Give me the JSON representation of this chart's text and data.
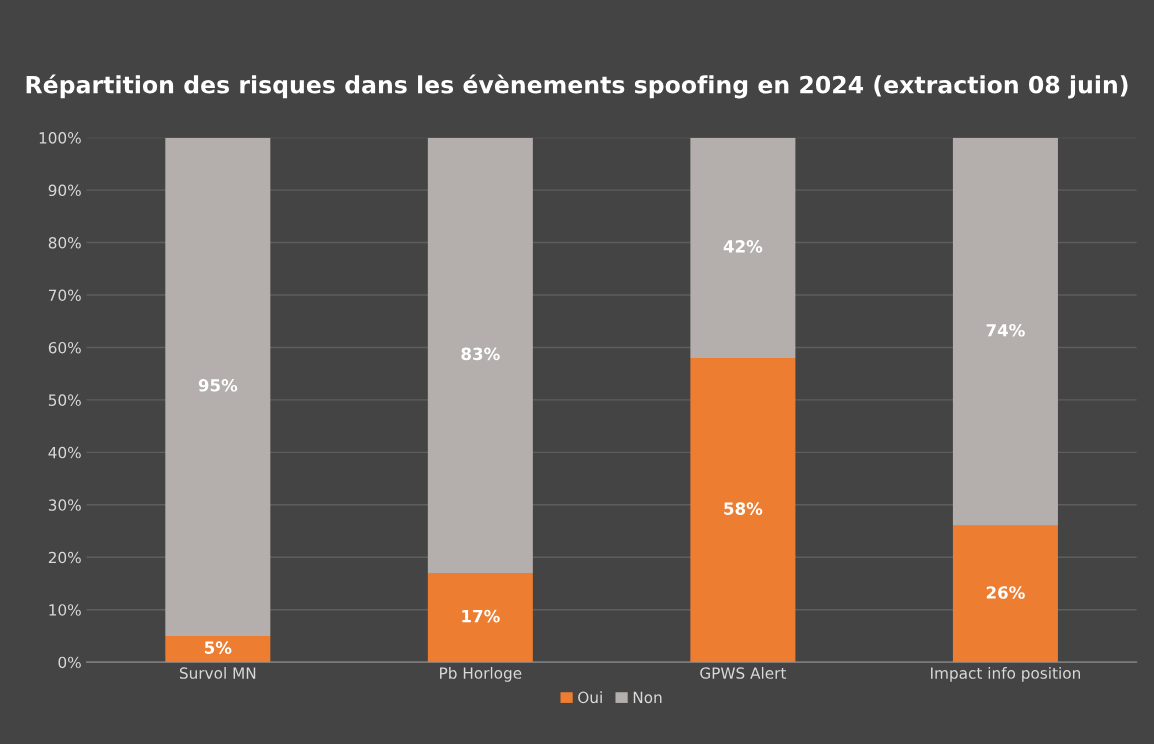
{
  "chart_data": {
    "type": "bar",
    "stacked": true,
    "title": "Répartition des risques dans les évènements spoofing en 2024 (extraction 08 juin)",
    "categories": [
      "Survol MN",
      "Pb Horloge",
      "GPWS Alert",
      "Impact info position"
    ],
    "series": [
      {
        "name": "Oui",
        "color": "#ed7d31",
        "values": [
          5,
          17,
          58,
          26
        ],
        "value_labels": [
          "5%",
          "17%",
          "58%",
          "26%"
        ]
      },
      {
        "name": "Non",
        "color": "#b4afac",
        "values": [
          95,
          83,
          42,
          74
        ],
        "value_labels": [
          "95%",
          "83%",
          "42%",
          "74%"
        ]
      }
    ],
    "ylim": [
      0,
      100
    ],
    "yticks": [
      {
        "value": 0,
        "label": "0%"
      },
      {
        "value": 10,
        "label": "10%"
      },
      {
        "value": 20,
        "label": "20%"
      },
      {
        "value": 30,
        "label": "30%"
      },
      {
        "value": 40,
        "label": "40%"
      },
      {
        "value": 50,
        "label": "50%"
      },
      {
        "value": 60,
        "label": "60%"
      },
      {
        "value": 70,
        "label": "70%"
      },
      {
        "value": 80,
        "label": "80%"
      },
      {
        "value": 90,
        "label": "90%"
      },
      {
        "value": 100,
        "label": "100%"
      }
    ],
    "grid": "y",
    "legend": "bottom"
  }
}
